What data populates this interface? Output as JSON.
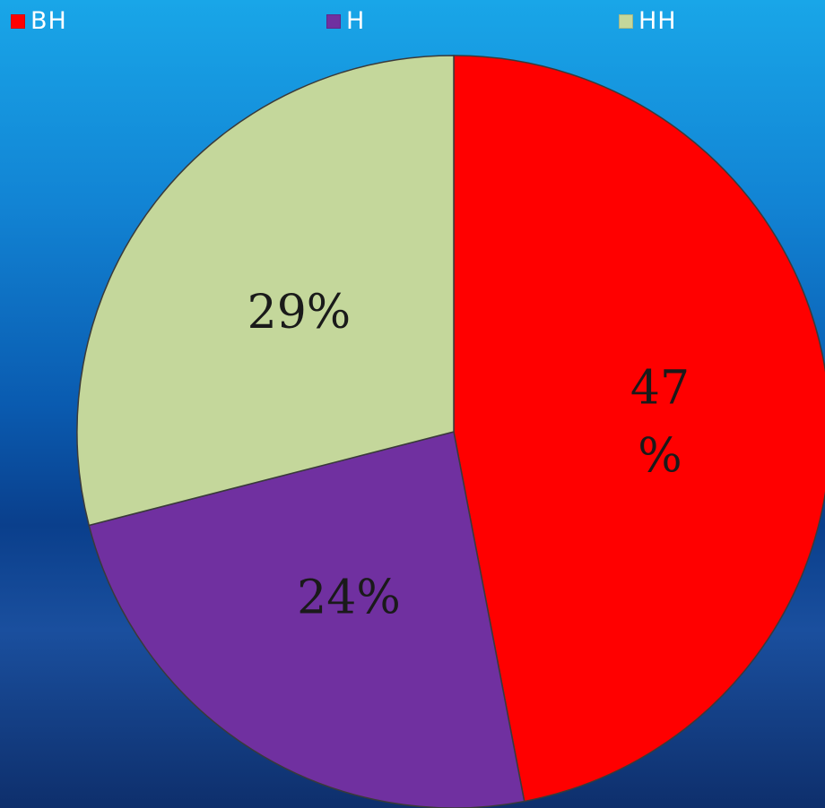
{
  "chart_data": {
    "type": "pie",
    "categories": [
      "ВН",
      "Н",
      "НН"
    ],
    "values": [
      47,
      24,
      29
    ],
    "colors": [
      "#ff0000",
      "#7030a0",
      "#c4d79b"
    ],
    "data_labels": [
      "47 %",
      "24%",
      "29%"
    ],
    "legend_placement": "top"
  }
}
